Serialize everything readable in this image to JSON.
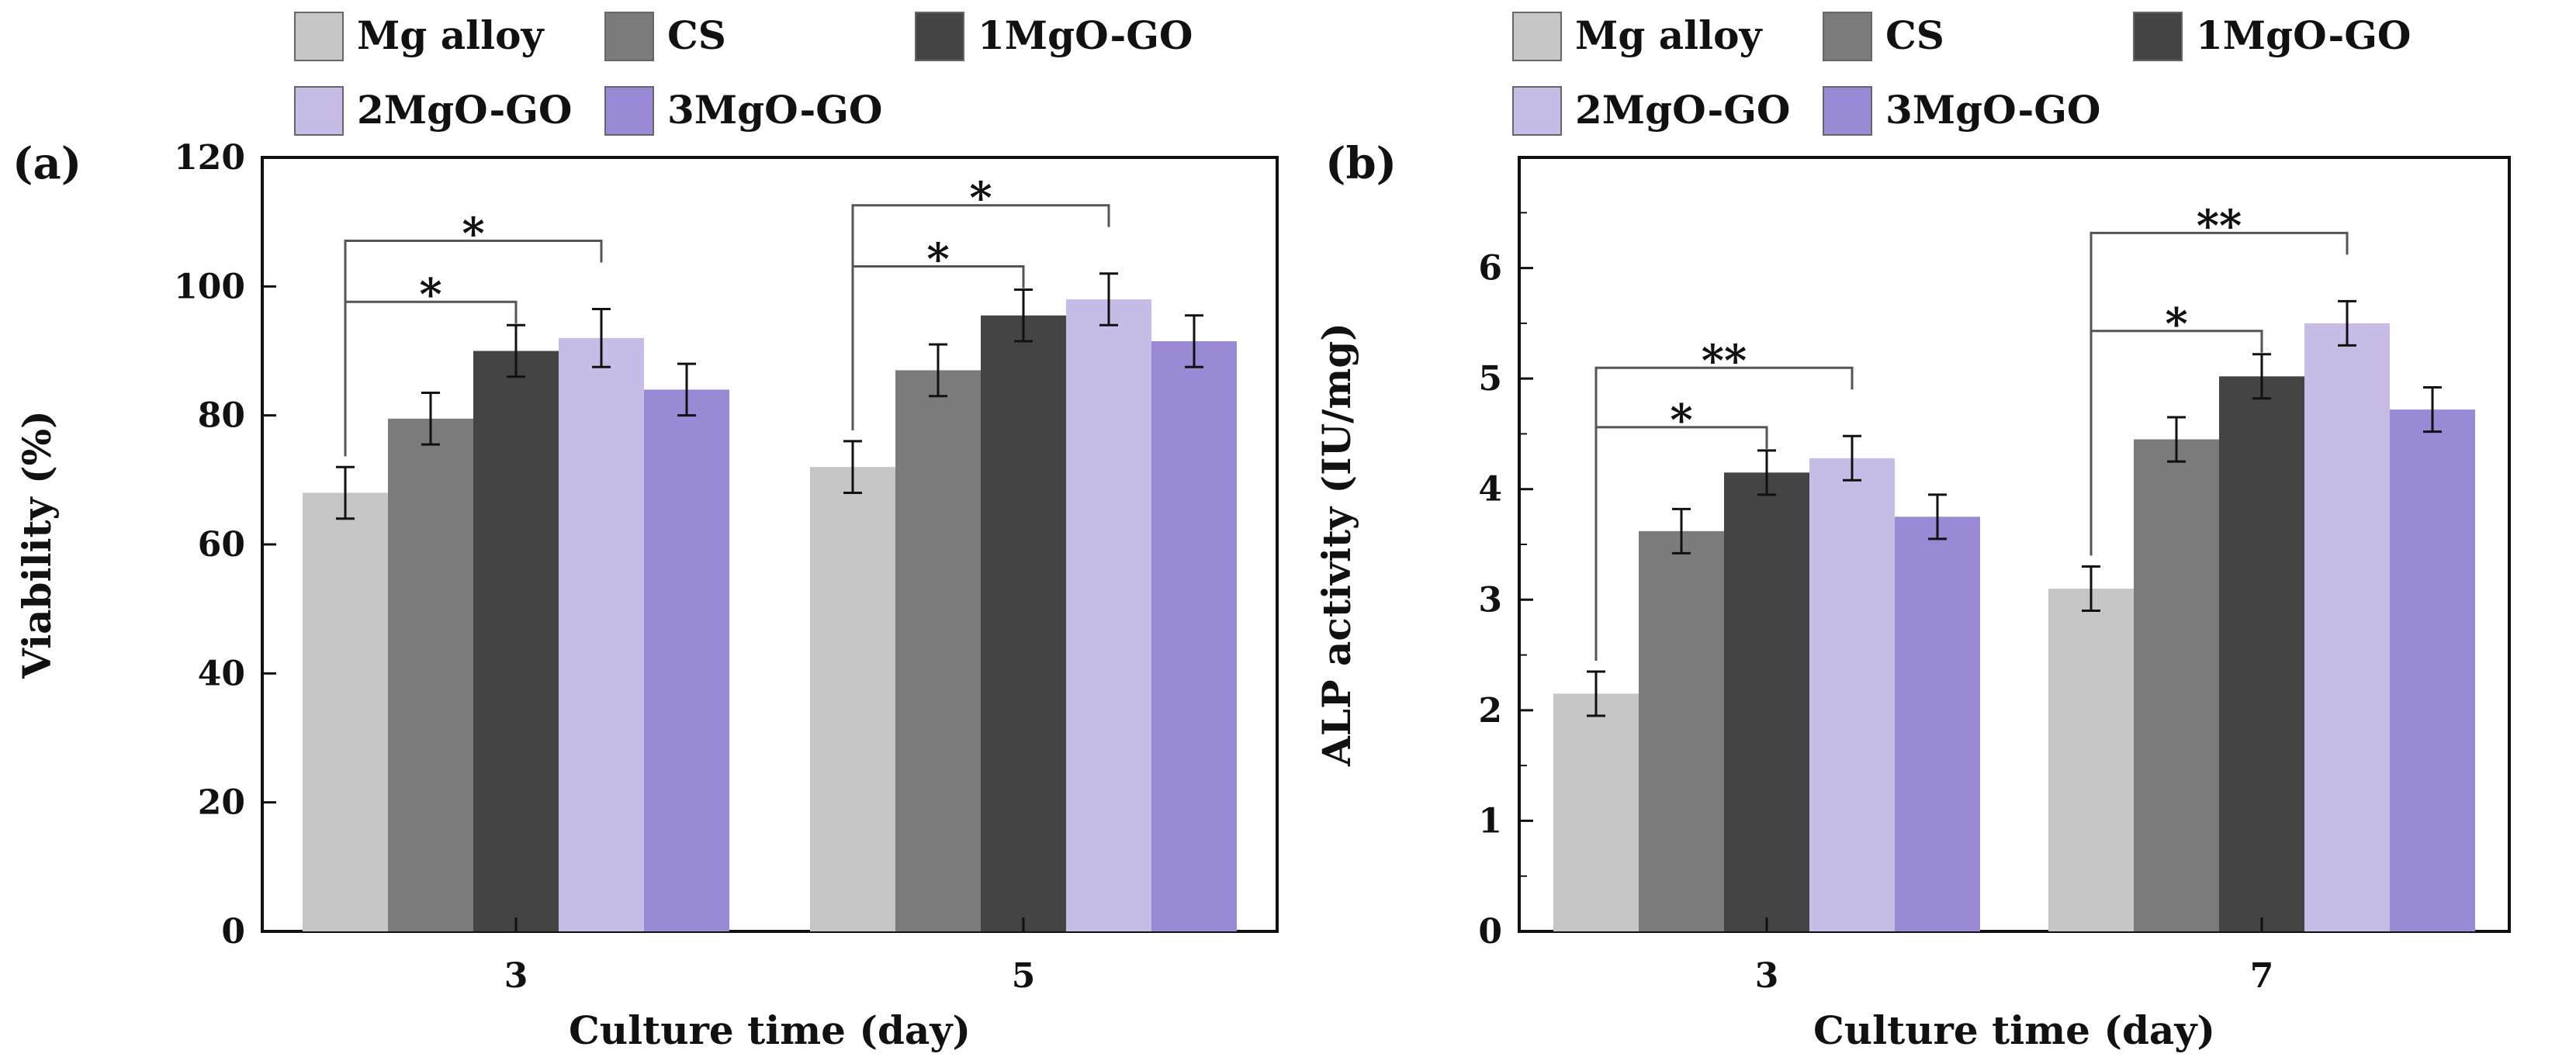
{
  "legend": [
    {
      "label": "Mg alloy",
      "color": "#c6c6c6"
    },
    {
      "label": "CS",
      "color": "#7b7b7b"
    },
    {
      "label": "1MgO-GO",
      "color": "#444444"
    },
    {
      "label": "2MgO-GO",
      "color": "#c7bde6"
    },
    {
      "label": "3MgO-GO",
      "color": "#9a8ad6"
    }
  ],
  "chart_data": [
    {
      "panel": "(a)",
      "type": "bar",
      "xlabel": "Culture time (day)",
      "ylabel": "Viability (%)",
      "ylim": [
        0,
        120
      ],
      "yticks": [
        0,
        20,
        40,
        60,
        80,
        100,
        120
      ],
      "categories": [
        "3",
        "5"
      ],
      "series": [
        {
          "name": "Mg alloy",
          "values": [
            68,
            72
          ],
          "errors": [
            4,
            4
          ]
        },
        {
          "name": "CS",
          "values": [
            79.5,
            87
          ],
          "errors": [
            4,
            4
          ]
        },
        {
          "name": "1MgO-GO",
          "values": [
            90,
            95.5
          ],
          "errors": [
            4,
            4
          ]
        },
        {
          "name": "2MgO-GO",
          "values": [
            92,
            98
          ],
          "errors": [
            4.5,
            4
          ]
        },
        {
          "name": "3MgO-GO",
          "values": [
            84,
            91.5
          ],
          "errors": [
            4,
            4
          ]
        }
      ],
      "significance": [
        {
          "category": "3",
          "from": "Mg alloy",
          "to": "1MgO-GO",
          "label": "*"
        },
        {
          "category": "3",
          "from": "Mg alloy",
          "to": "2MgO-GO",
          "label": "*"
        },
        {
          "category": "5",
          "from": "Mg alloy",
          "to": "1MgO-GO",
          "label": "*"
        },
        {
          "category": "5",
          "from": "Mg alloy",
          "to": "2MgO-GO",
          "label": "*"
        }
      ]
    },
    {
      "panel": "(b)",
      "type": "bar",
      "xlabel": "Culture time (day)",
      "ylabel": "ALP activity (IU/mg)",
      "ylim": [
        0,
        7
      ],
      "yticks": [
        0,
        1,
        2,
        3,
        4,
        5,
        6
      ],
      "categories": [
        "3",
        "7"
      ],
      "series": [
        {
          "name": "Mg alloy",
          "values": [
            2.15,
            3.1
          ],
          "errors": [
            0.2,
            0.2
          ]
        },
        {
          "name": "CS",
          "values": [
            3.62,
            4.45
          ],
          "errors": [
            0.2,
            0.2
          ]
        },
        {
          "name": "1MgO-GO",
          "values": [
            4.15,
            5.02
          ],
          "errors": [
            0.2,
            0.2
          ]
        },
        {
          "name": "2MgO-GO",
          "values": [
            4.28,
            5.5
          ],
          "errors": [
            0.2,
            0.2
          ]
        },
        {
          "name": "3MgO-GO",
          "values": [
            3.75,
            4.72
          ],
          "errors": [
            0.2,
            0.2
          ]
        }
      ],
      "significance": [
        {
          "category": "3",
          "from": "Mg alloy",
          "to": "1MgO-GO",
          "label": "*"
        },
        {
          "category": "3",
          "from": "Mg alloy",
          "to": "2MgO-GO",
          "label": "**"
        },
        {
          "category": "7",
          "from": "Mg alloy",
          "to": "1MgO-GO",
          "label": "*"
        },
        {
          "category": "7",
          "from": "Mg alloy",
          "to": "2MgO-GO",
          "label": "**"
        }
      ]
    }
  ]
}
